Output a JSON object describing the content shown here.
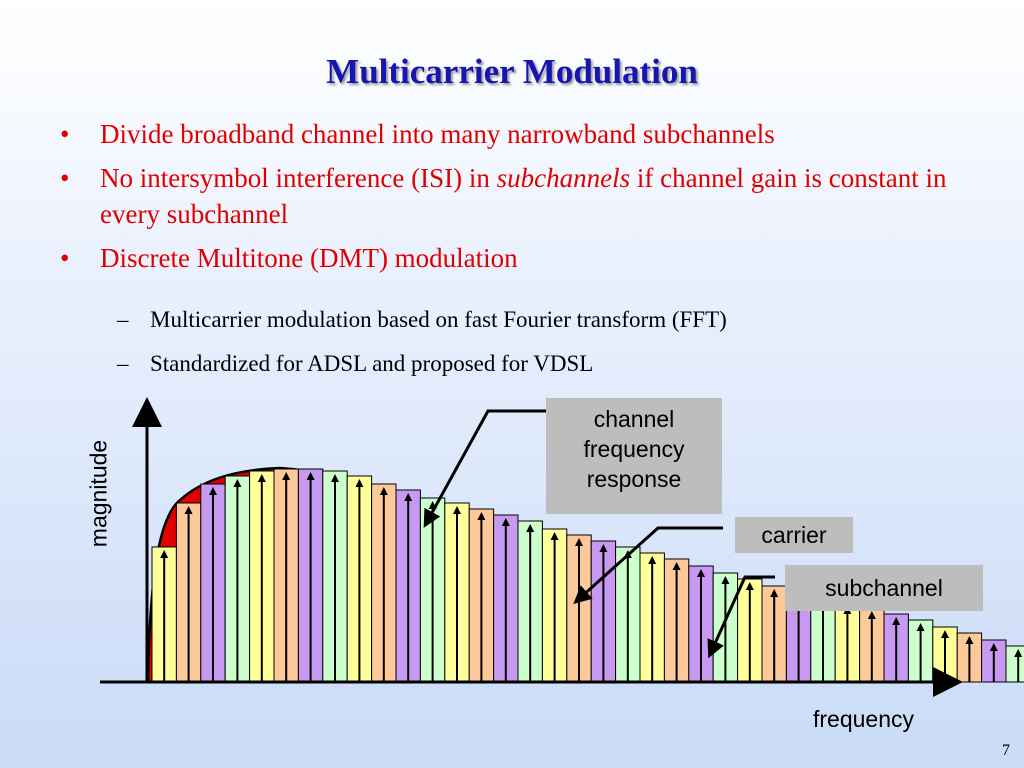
{
  "slide": {
    "title": "Multicarrier Modulation",
    "bullets": [
      {
        "marker": "•",
        "pre": "Divide broadband channel into many narrowband subchannels",
        "em": "",
        "post": ""
      },
      {
        "marker": "•",
        "pre": "No intersymbol interference (ISI) in ",
        "em": "subchannels",
        "post": " if channel gain is constant in every subchannel"
      },
      {
        "marker": "•",
        "pre": "Discrete Multitone (DMT) modulation",
        "em": "",
        "post": ""
      }
    ],
    "subbullets": [
      {
        "marker": "–",
        "text": "Multicarrier modulation based on fast Fourier transform (FFT)"
      },
      {
        "marker": "–",
        "text": "Standardized for ADSL and proposed for VDSL"
      }
    ],
    "page_number": "7"
  },
  "diagram": {
    "y_axis_label": "magnitude",
    "x_axis_label": "frequency",
    "labels": {
      "channel_response": "channel frequency response",
      "carrier": "carrier",
      "subchannel": "subchannel"
    },
    "subchannel_palette": [
      "#ffff99",
      "#fdc99b",
      "#c899f0",
      "#ccffcc"
    ],
    "curve_color": "#e00000",
    "title_color": "#1616b0",
    "bullet_color": "#e00000"
  }
}
